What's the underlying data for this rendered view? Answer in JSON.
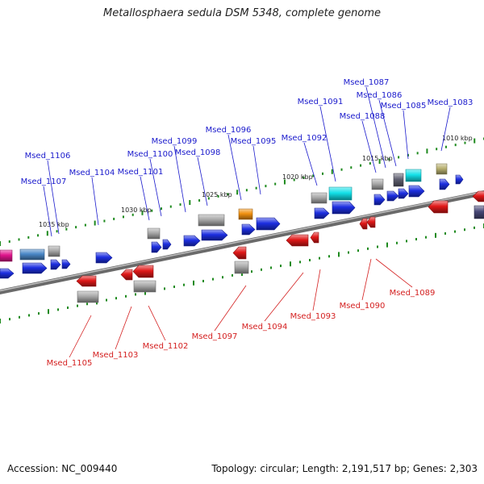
{
  "title": "Metallosphaera sedula DSM 5348, complete genome",
  "accession_text": "Accession: NC_009440",
  "summary_text": "Topology: circular; Length: 2,191,517 bp; Genes: 2,303",
  "scale_labels": [
    "1010 kbp",
    "1015 kbp",
    "1020 kbp",
    "1025 kbp",
    "1030 kbp",
    "1035 kbp"
  ],
  "colors": {
    "forward_label": "#1a1acc",
    "reverse_label": "#d42020",
    "forward_gene": "#1c2ee0",
    "reverse_gene": "#e01818",
    "grey_feature": "#a8a8a8",
    "cyan_feature": "#12e0e8",
    "orange_feature": "#f09010",
    "tick_green": "#1e8a1e",
    "backbone": "#8a8a8a"
  },
  "forward_genes": [
    "Msed_1083",
    "Msed_1085",
    "Msed_1086",
    "Msed_1087",
    "Msed_1088",
    "Msed_1091",
    "Msed_1092",
    "Msed_1095",
    "Msed_1096",
    "Msed_1098",
    "Msed_1099",
    "Msed_1100",
    "Msed_1101",
    "Msed_1104",
    "Msed_1106",
    "Msed_1107"
  ],
  "reverse_genes": [
    "Msed_1089",
    "Msed_1090",
    "Msed_1093",
    "Msed_1094",
    "Msed_1097",
    "Msed_1102",
    "Msed_1103",
    "Msed_1105"
  ]
}
